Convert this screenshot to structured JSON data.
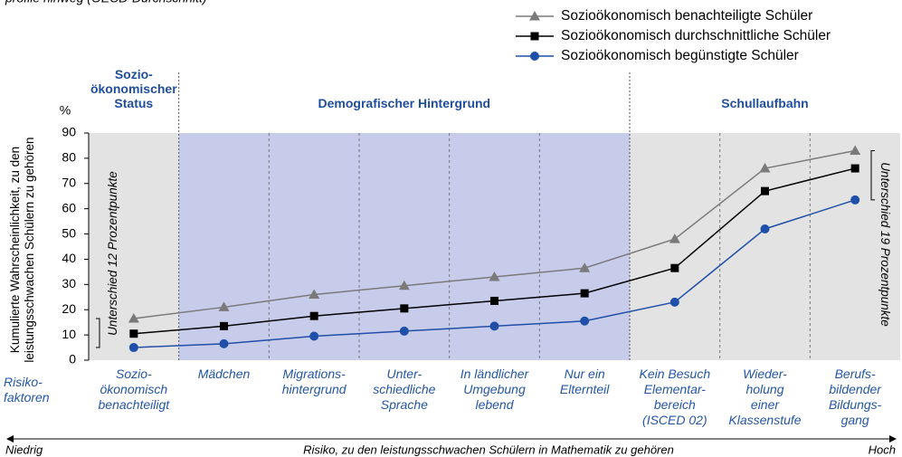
{
  "chart_data": {
    "type": "line",
    "top_note": "profile hinweg (OECD-Durchschnitt)",
    "y_unit": "%",
    "ylabel": "Kumulierte Wahrscheinlichkeit, zu den\nleistungsschwachen Schülern zu gehören",
    "xlabel": "Risiko, zu den leistungsschwachen Schülern in Mathematik zu gehören",
    "x_low": "Niedrig",
    "x_high": "Hoch",
    "row_label": "Risiko-\nfaktoren",
    "groups": [
      {
        "label": "Sozio-\nökonomischer\nStatus",
        "start": 0,
        "end": 0
      },
      {
        "label": "Demografischer Hintergrund",
        "start": 1,
        "end": 5
      },
      {
        "label": "Schullaufbahn",
        "start": 6,
        "end": 8
      }
    ],
    "categories": [
      "Sozio-\nökonomisch\nbenachteiligt",
      "Mädchen",
      "Migrations-\nhintergrund",
      "Unter-\nschiedliche\nSprache",
      "In ländlicher\nUmgebung\nlebend",
      "Nur ein\nElternteil",
      "Kein Besuch\nElementar-\nbereich\n(ISCED 02)",
      "Wieder-\nholung\neiner\nKlassenstufe",
      "Berufs-\nbildender\nBildungs-\ngang"
    ],
    "series": [
      {
        "name": "Sozioökonomisch benachteiligte Schüler",
        "color": "#7a7a7a",
        "marker": "triangle",
        "values": [
          16.5,
          21,
          26,
          29.5,
          33,
          36.5,
          48,
          76,
          83
        ]
      },
      {
        "name": "Sozioökonomisch durchschnittliche Schüler",
        "color": "#000000",
        "marker": "square",
        "values": [
          10.5,
          13.5,
          17.5,
          20.5,
          23.5,
          26.5,
          36.5,
          67,
          76
        ]
      },
      {
        "name": "Sozioökonomisch begünstigte Schüler",
        "color": "#1f4fa8",
        "marker": "circle",
        "values": [
          5,
          6.5,
          9.5,
          11.5,
          13.5,
          15.5,
          23,
          52,
          63.5
        ]
      }
    ],
    "annotations": [
      "Unterschied 12 Prozentpunkte",
      "Unterschied 19 Prozentpunkte"
    ],
    "ylim": [
      0,
      90
    ],
    "yticks": [
      0,
      10,
      20,
      30,
      40,
      50,
      60,
      70,
      80,
      90
    ],
    "grid": false
  }
}
